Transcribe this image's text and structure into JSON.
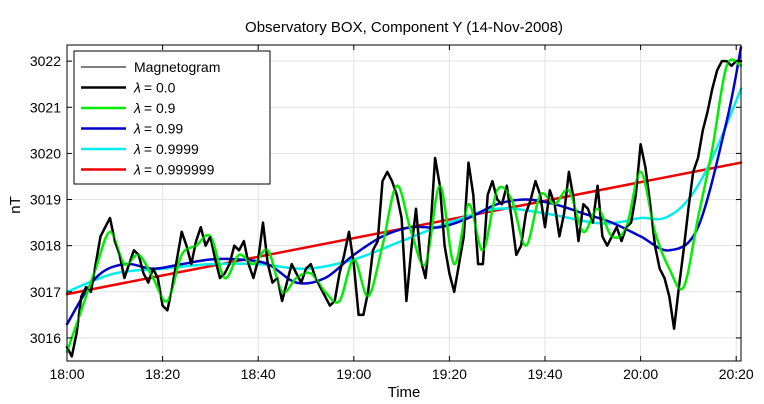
{
  "chart_data": {
    "type": "line",
    "title": "Observatory BOX,  Component Y   (14-Nov-2008)",
    "xlabel": "Time",
    "ylabel": "nT",
    "x_ticks": [
      "18:00",
      "18:20",
      "18:40",
      "19:00",
      "19:20",
      "19:40",
      "20:00",
      "20:20"
    ],
    "y_ticks": [
      "3016",
      "3017",
      "3018",
      "3019",
      "3020",
      "3021",
      "3022"
    ],
    "xlim_minutes": [
      0,
      141
    ],
    "ylim": [
      3015.5,
      3022.35
    ],
    "grid": true,
    "legend_position": "top-left",
    "series": [
      {
        "name": "Magnetogram",
        "legend_label": "Magnetogram",
        "color": "#000000",
        "line": "thin",
        "x": [
          0,
          1,
          2,
          3,
          4,
          5,
          6,
          7,
          8,
          9,
          10,
          11,
          12,
          13,
          14,
          15,
          16,
          17,
          18,
          19,
          20,
          21,
          22,
          23,
          24,
          25,
          26,
          27,
          28,
          29,
          30,
          31,
          32,
          33,
          34,
          35,
          36,
          37,
          38,
          39,
          40,
          41,
          42,
          43,
          44,
          45,
          46,
          47,
          48,
          49,
          50,
          51,
          52,
          53,
          54,
          55,
          56,
          57,
          58,
          59,
          60,
          61,
          62,
          63,
          64,
          65,
          66,
          67,
          68,
          69,
          70,
          71,
          72,
          73,
          74,
          75,
          76,
          77,
          78,
          79,
          80,
          81,
          82,
          83,
          84,
          85,
          86,
          87,
          88,
          89,
          90,
          91,
          92,
          93,
          94,
          95,
          96,
          97,
          98,
          99,
          100,
          101,
          102,
          103,
          104,
          105,
          106,
          107,
          108,
          109,
          110,
          111,
          112,
          113,
          114,
          115,
          116,
          117,
          118,
          119,
          120,
          121,
          122,
          123,
          124,
          125,
          126,
          127,
          128,
          129,
          130,
          131,
          132,
          133,
          134,
          135,
          136,
          137,
          138,
          139,
          140,
          141
        ],
        "y": [
          3015.8,
          3015.6,
          3016.1,
          3016.9,
          3017.1,
          3017.0,
          3017.6,
          3018.2,
          3018.4,
          3018.6,
          3018.1,
          3017.8,
          3017.3,
          3017.6,
          3017.9,
          3017.8,
          3017.4,
          3017.2,
          3017.5,
          3017.3,
          3016.7,
          3016.6,
          3017.1,
          3017.7,
          3018.3,
          3018.0,
          3017.6,
          3018.1,
          3018.4,
          3018.0,
          3018.2,
          3017.7,
          3017.3,
          3017.4,
          3017.6,
          3018.0,
          3017.9,
          3018.1,
          3017.6,
          3017.3,
          3017.7,
          3018.5,
          3017.6,
          3017.2,
          3017.3,
          3016.8,
          3017.2,
          3017.6,
          3017.4,
          3017.2,
          3017.5,
          3017.6,
          3017.3,
          3017.1,
          3016.9,
          3016.7,
          3016.8,
          3017.4,
          3017.8,
          3018.3,
          3017.6,
          3016.5,
          3016.5,
          3017.0,
          3017.9,
          3018.1,
          3019.4,
          3019.6,
          3019.4,
          3019.1,
          3018.6,
          3016.8,
          3017.9,
          3018.8,
          3017.7,
          3017.3,
          3018.3,
          3019.9,
          3019.3,
          3018.0,
          3017.4,
          3017.0,
          3017.6,
          3018.2,
          3019.8,
          3019.1,
          3017.6,
          3017.6,
          3019.1,
          3019.4,
          3019.0,
          3018.9,
          3019.3,
          3018.6,
          3017.8,
          3018.0,
          3018.7,
          3019.0,
          3019.4,
          3019.1,
          3018.4,
          3019.2,
          3018.9,
          3018.2,
          3018.7,
          3019.6,
          3019.0,
          3018.1,
          3018.9,
          3018.8,
          3018.5,
          3019.3,
          3018.2,
          3018.0,
          3018.2,
          3018.4,
          3018.1,
          3018.4,
          3018.5,
          3019.1,
          3020.2,
          3019.7,
          3018.9,
          3018.0,
          3017.5,
          3017.3,
          3016.9,
          3016.2,
          3017.1,
          3017.9,
          3018.8,
          3019.6,
          3019.9,
          3020.5,
          3020.9,
          3021.4,
          3021.8,
          3022.0,
          3022.0,
          3021.9,
          3022.0,
          3022.0
        ],
        "note": "raw data, overplotted by the lambda = 0.0 curve"
      },
      {
        "name": "lambda-0.0",
        "legend_label": "= 0.0",
        "color": "#000000",
        "line": "thick",
        "same_as": "Magnetogram"
      },
      {
        "name": "lambda-0.9",
        "legend_label": "= 0.9",
        "color": "#00ee00",
        "x": [
          0,
          3,
          6,
          9,
          12,
          15,
          18,
          21,
          24,
          27,
          30,
          33,
          36,
          39,
          42,
          45,
          48,
          51,
          54,
          57,
          60,
          63,
          66,
          69,
          72,
          75,
          78,
          81,
          84,
          87,
          90,
          93,
          96,
          99,
          102,
          105,
          108,
          111,
          114,
          117,
          120,
          123,
          126,
          129,
          132,
          135,
          138,
          141
        ],
        "y": [
          3015.7,
          3016.6,
          3017.5,
          3018.3,
          3017.6,
          3017.8,
          3017.3,
          3016.8,
          3017.8,
          3018.0,
          3018.2,
          3017.3,
          3017.8,
          3017.6,
          3017.9,
          3017.0,
          3017.3,
          3017.4,
          3017.0,
          3016.8,
          3017.7,
          3016.9,
          3018.0,
          3019.3,
          3018.3,
          3017.6,
          3019.3,
          3017.6,
          3018.9,
          3017.9,
          3019.2,
          3019.0,
          3018.0,
          3019.1,
          3018.9,
          3019.2,
          3018.3,
          3018.8,
          3018.2,
          3018.4,
          3019.6,
          3018.3,
          3017.5,
          3017.1,
          3018.6,
          3020.1,
          3021.9,
          3021.9
        ]
      },
      {
        "name": "lambda-0.99",
        "legend_label": "= 0.99",
        "color": "#0000cc",
        "x": [
          0,
          6,
          12,
          18,
          24,
          30,
          36,
          42,
          48,
          54,
          60,
          66,
          72,
          78,
          84,
          90,
          96,
          102,
          108,
          114,
          120,
          126,
          132,
          138,
          141
        ],
        "y": [
          3016.3,
          3017.3,
          3017.6,
          3017.5,
          3017.6,
          3017.7,
          3017.7,
          3017.6,
          3017.2,
          3017.3,
          3017.8,
          3018.2,
          3018.4,
          3018.4,
          3018.6,
          3018.9,
          3019.0,
          3018.9,
          3018.7,
          3018.5,
          3018.2,
          3017.9,
          3018.4,
          3020.7,
          3022.3
        ]
      },
      {
        "name": "lambda-0.9999",
        "legend_label": "= 0.9999",
        "color": "#00eeee",
        "x": [
          0,
          10,
          20,
          30,
          40,
          50,
          60,
          70,
          80,
          90,
          100,
          110,
          115,
          120,
          125,
          130,
          135,
          141
        ],
        "y": [
          3017.0,
          3017.4,
          3017.5,
          3017.6,
          3017.6,
          3017.5,
          3017.7,
          3018.1,
          3018.5,
          3018.8,
          3018.7,
          3018.5,
          3018.5,
          3018.6,
          3018.6,
          3019.0,
          3019.9,
          3021.4
        ]
      },
      {
        "name": "lambda-0.999999",
        "legend_label": "= 0.999999",
        "color": "#ee0000",
        "x": [
          0,
          141
        ],
        "y": [
          3016.95,
          3019.8
        ]
      }
    ],
    "legend_symbol": "λ"
  }
}
